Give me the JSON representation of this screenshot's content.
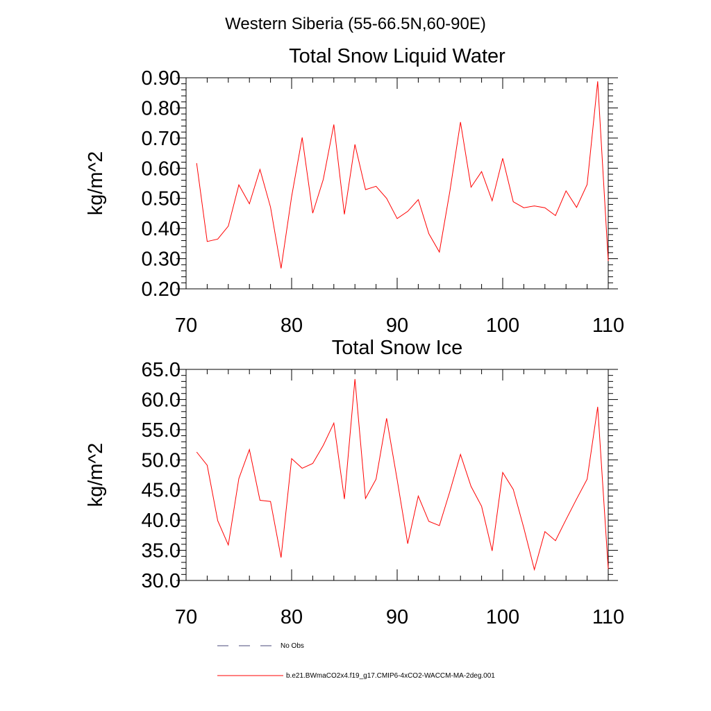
{
  "suptitle": "Western Siberia (55-66.5N,60-90E)",
  "legend": {
    "obs_label": "No Obs",
    "obs_color": "#4a4a7a",
    "model_label": "b.e21.BWmaCO2x4.f19_g17.CMIP6-4xCO2-WACCM-MA-2deg.001",
    "model_color": "#ff0000"
  },
  "chart_data": [
    {
      "type": "line",
      "title": "Total Snow Liquid Water",
      "xlabel": "",
      "ylabel": "kg/m^2",
      "xlim": [
        70,
        110
      ],
      "ylim": [
        0.2,
        0.9
      ],
      "xticks": [
        70,
        80,
        90,
        100,
        110
      ],
      "xtick_labels": [
        "70",
        "80",
        "90",
        "100",
        "110"
      ],
      "yticks": [
        0.2,
        0.3,
        0.4,
        0.5,
        0.6,
        0.7,
        0.8,
        0.9
      ],
      "ytick_labels": [
        "0.20",
        "0.30",
        "0.40",
        "0.50",
        "0.60",
        "0.70",
        "0.80",
        "0.90"
      ],
      "grid": false,
      "color": "#ff0000",
      "x": [
        71,
        72,
        73,
        74,
        75,
        76,
        77,
        78,
        79,
        80,
        81,
        82,
        83,
        84,
        85,
        86,
        87,
        88,
        89,
        90,
        91,
        92,
        93,
        94,
        95,
        96,
        97,
        98,
        99,
        100,
        101,
        102,
        103,
        104,
        105,
        106,
        107,
        108,
        109,
        110
      ],
      "y": [
        0.617,
        0.357,
        0.365,
        0.408,
        0.545,
        0.482,
        0.596,
        0.471,
        0.268,
        0.506,
        0.702,
        0.451,
        0.563,
        0.745,
        0.447,
        0.679,
        0.529,
        0.54,
        0.5,
        0.433,
        0.457,
        0.496,
        0.383,
        0.322,
        0.525,
        0.753,
        0.537,
        0.589,
        0.492,
        0.633,
        0.489,
        0.469,
        0.475,
        0.469,
        0.443,
        0.525,
        0.47,
        0.546,
        0.888,
        0.292
      ]
    },
    {
      "type": "line",
      "title": "Total Snow Ice",
      "xlabel": "",
      "ylabel": "kg/m^2",
      "xlim": [
        70,
        110
      ],
      "ylim": [
        30,
        65
      ],
      "xticks": [
        70,
        80,
        90,
        100,
        110
      ],
      "xtick_labels": [
        "70",
        "80",
        "90",
        "100",
        "110"
      ],
      "yticks": [
        30,
        35,
        40,
        45,
        50,
        55,
        60,
        65
      ],
      "ytick_labels": [
        "30.0",
        "35.0",
        "40.0",
        "45.0",
        "50.0",
        "55.0",
        "60.0",
        "65.0"
      ],
      "grid": false,
      "color": "#ff0000",
      "x": [
        71,
        72,
        73,
        74,
        75,
        76,
        77,
        78,
        79,
        80,
        81,
        82,
        83,
        84,
        85,
        86,
        87,
        88,
        89,
        90,
        91,
        92,
        93,
        94,
        95,
        96,
        97,
        98,
        99,
        100,
        101,
        102,
        103,
        104,
        105,
        106,
        107,
        108,
        109,
        110
      ],
      "y": [
        51.3,
        49.1,
        39.9,
        35.9,
        46.9,
        51.7,
        43.3,
        43.1,
        33.8,
        50.2,
        48.6,
        49.4,
        52.4,
        56.1,
        43.5,
        63.4,
        43.6,
        46.8,
        56.9,
        46.7,
        36.1,
        44.0,
        39.8,
        39.1,
        44.8,
        50.9,
        45.6,
        42.3,
        34.9,
        47.9,
        45.1,
        38.7,
        31.8,
        38.1,
        36.6,
        40.1,
        43.5,
        46.8,
        58.8,
        31.9
      ]
    }
  ]
}
